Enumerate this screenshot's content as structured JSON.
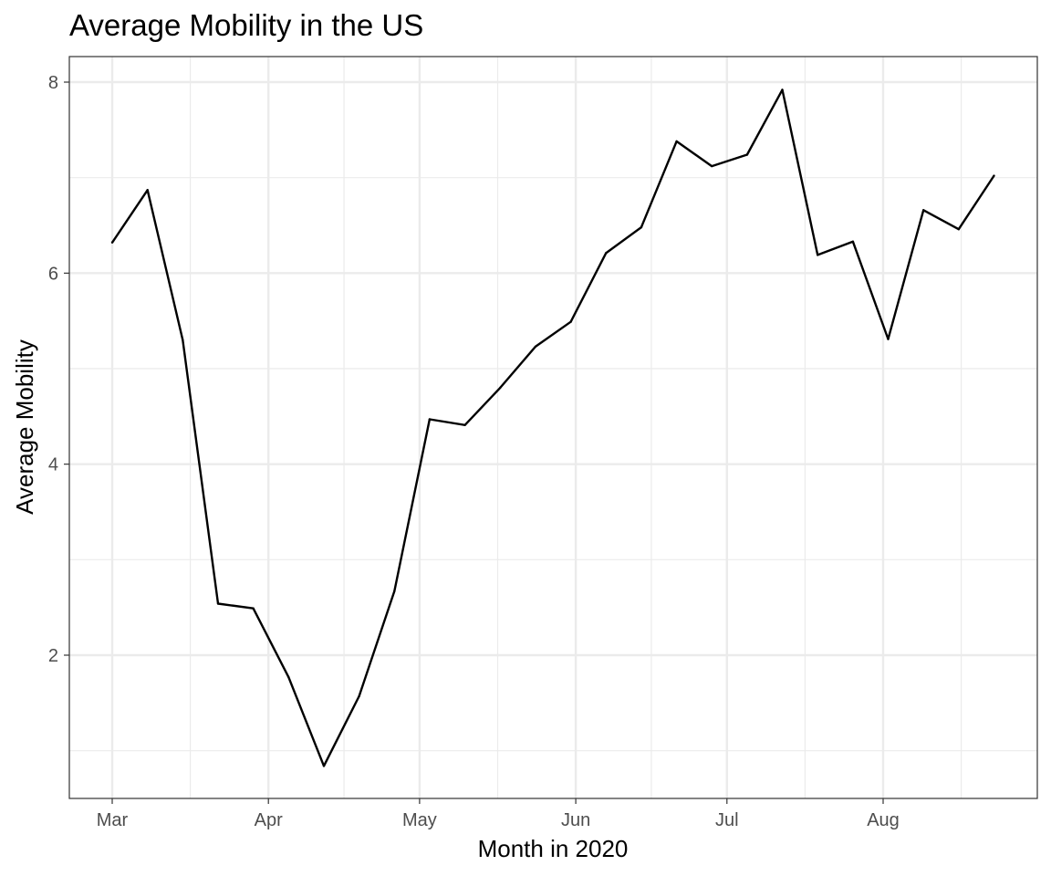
{
  "chart_data": {
    "type": "line",
    "title": "Average Mobility in the US",
    "xlabel": "Month in 2020",
    "ylabel": "Average Mobility",
    "x_ticks": [
      {
        "label": "Mar",
        "day": 0
      },
      {
        "label": "Apr",
        "day": 31
      },
      {
        "label": "May",
        "day": 61
      },
      {
        "label": "Jun",
        "day": 92
      },
      {
        "label": "Jul",
        "day": 122
      },
      {
        "label": "Aug",
        "day": 153
      }
    ],
    "y_ticks": [
      2,
      4,
      6,
      8
    ],
    "ylim": [
      0.5,
      8.25
    ],
    "grid": true,
    "series": [
      {
        "x": [
          "2020-03-01",
          "2020-03-08",
          "2020-03-15",
          "2020-03-22",
          "2020-03-29",
          "2020-04-05",
          "2020-04-12",
          "2020-04-19",
          "2020-04-26",
          "2020-05-03",
          "2020-05-10",
          "2020-05-17",
          "2020-05-24",
          "2020-05-31",
          "2020-06-07",
          "2020-06-14",
          "2020-06-21",
          "2020-06-28",
          "2020-07-05",
          "2020-07-12",
          "2020-07-19",
          "2020-07-26",
          "2020-08-02",
          "2020-08-09",
          "2020-08-16",
          "2020-08-23"
        ],
        "values": [
          6.32,
          6.87,
          5.3,
          2.54,
          2.49,
          1.77,
          0.84,
          1.57,
          2.67,
          4.47,
          4.41,
          4.8,
          5.23,
          5.49,
          6.21,
          6.48,
          7.38,
          7.12,
          7.24,
          7.92,
          6.19,
          6.33,
          5.31,
          6.66,
          6.46,
          7.02
        ],
        "color": "#000000"
      }
    ]
  }
}
